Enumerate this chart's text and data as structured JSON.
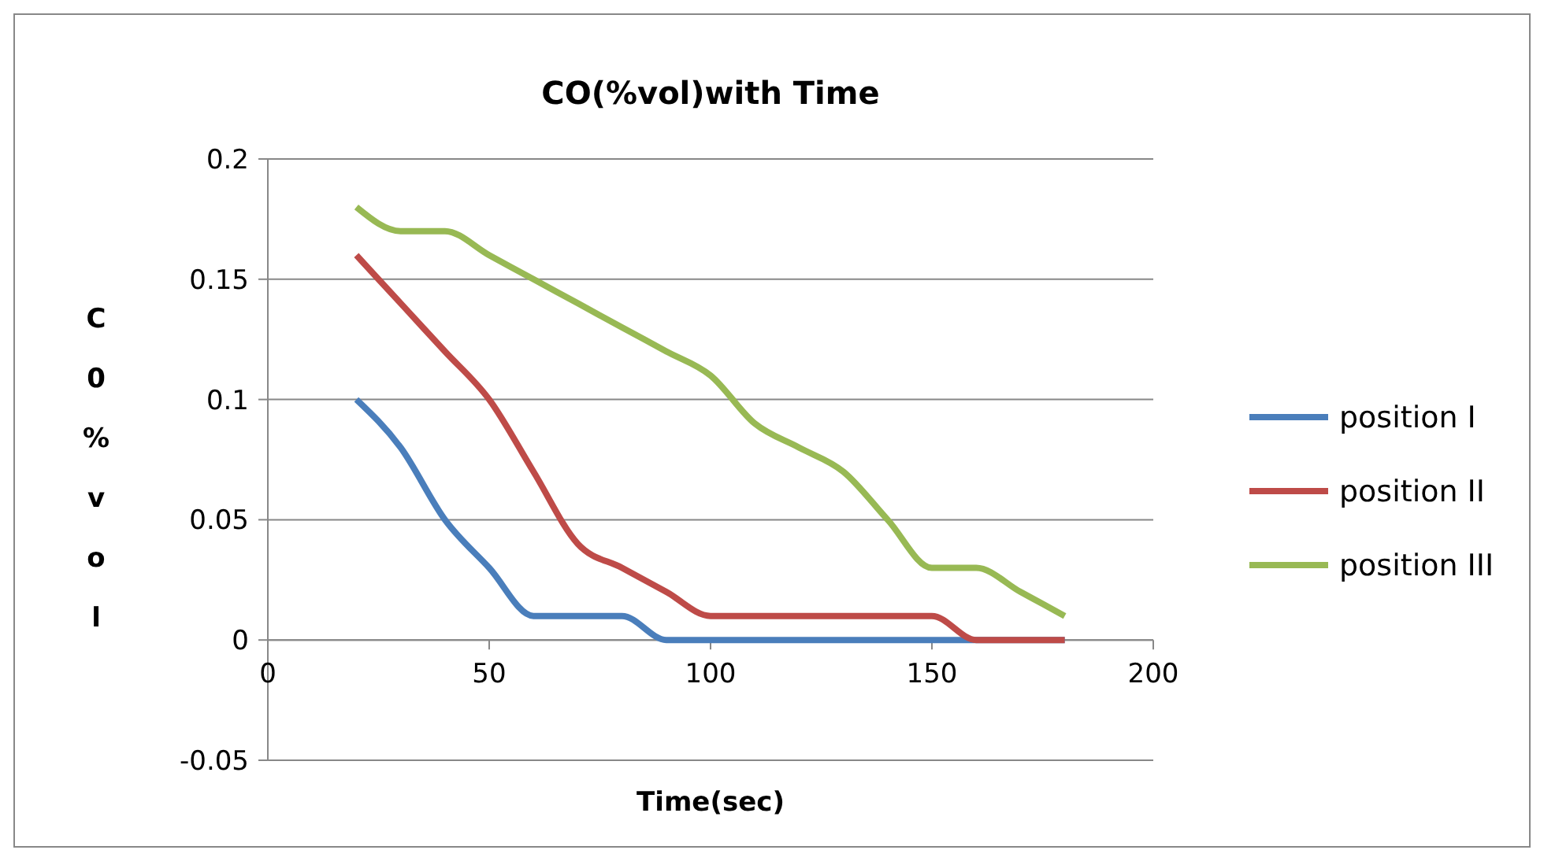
{
  "chart_data": {
    "type": "line",
    "title": "CO(%vol)with Time",
    "xlabel": "Time(sec)",
    "ylabel": "C0%vol",
    "x": [
      20,
      30,
      40,
      50,
      60,
      70,
      80,
      90,
      100,
      110,
      120,
      130,
      140,
      150,
      160,
      170,
      180
    ],
    "series": [
      {
        "name": "position I",
        "color": "#4a7ebb",
        "values": [
          0.1,
          0.08,
          0.05,
          0.03,
          0.01,
          0.01,
          0.01,
          0,
          0,
          0,
          0,
          0,
          0,
          0,
          0,
          0,
          0
        ]
      },
      {
        "name": "position II",
        "color": "#be4b48",
        "values": [
          0.16,
          0.14,
          0.12,
          0.1,
          0.07,
          0.04,
          0.03,
          0.02,
          0.01,
          0.01,
          0.01,
          0.01,
          0.01,
          0.01,
          0,
          0,
          0
        ]
      },
      {
        "name": "position III",
        "color": "#98b954",
        "values": [
          0.18,
          0.17,
          0.17,
          0.16,
          0.15,
          0.14,
          0.13,
          0.12,
          0.11,
          0.09,
          0.08,
          0.07,
          0.05,
          0.03,
          0.03,
          0.02,
          0.01
        ]
      }
    ],
    "xlim": [
      0,
      200
    ],
    "xticks": [
      0,
      50,
      100,
      150,
      200
    ],
    "ylim": [
      -0.05,
      0.2
    ],
    "yticks": [
      -0.05,
      0,
      0.05,
      0.1,
      0.15,
      0.2
    ],
    "grid": "y",
    "legend": "right",
    "marker": "none",
    "line_style": "solid"
  }
}
